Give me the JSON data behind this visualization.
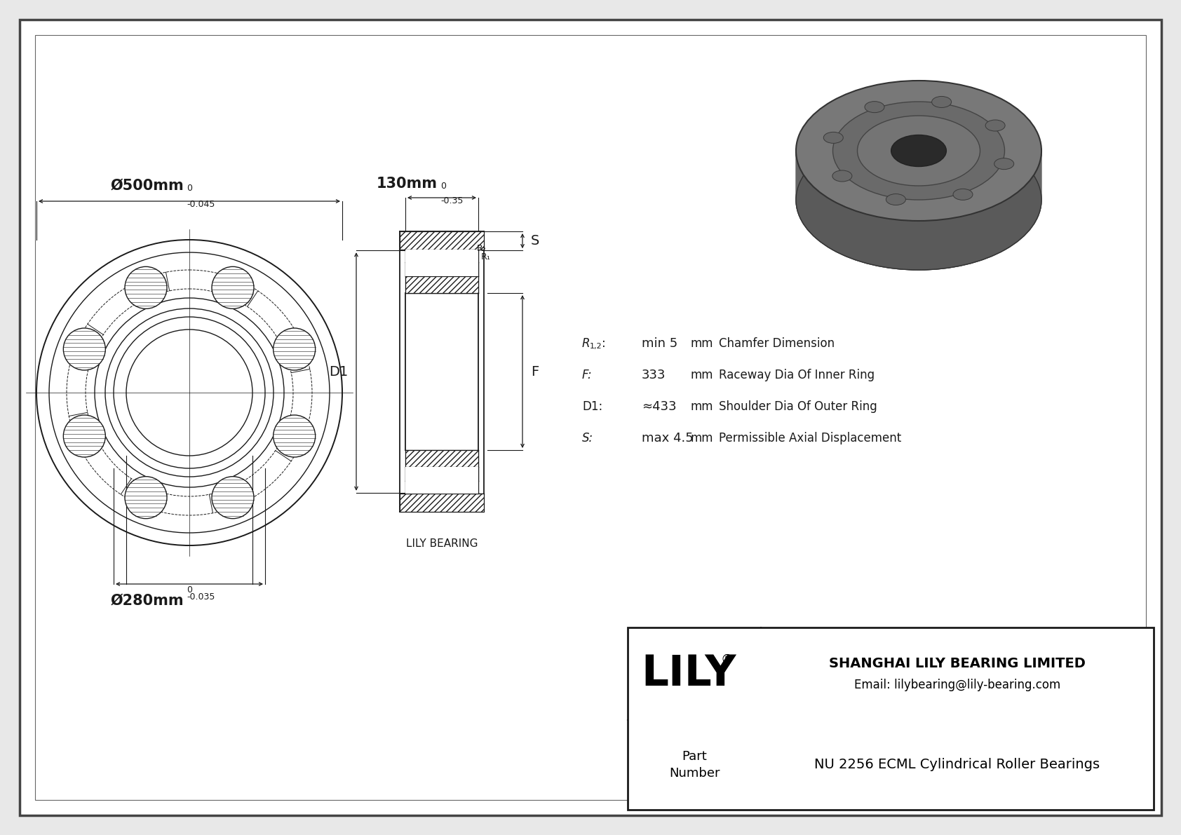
{
  "bg_color": "#f0f0f0",
  "inner_bg": "#ffffff",
  "line_color": "#1a1a1a",
  "part_number": "NU 2256 ECML Cylindrical Roller Bearings",
  "company": "SHANGHAI LILY BEARING LIMITED",
  "email": "Email: lilybearing@lily-bearing.com",
  "lily_text": "LILY",
  "params": [
    {
      "symbol": "R1,2:",
      "value": "min 5",
      "unit": "mm",
      "desc": "Chamfer Dimension"
    },
    {
      "symbol": "F:",
      "value": "333",
      "unit": "mm",
      "desc": "Raceway Dia Of Inner Ring"
    },
    {
      "symbol": "D1:",
      "value": "≈433",
      "unit": "mm",
      "desc": "Shoulder Dia Of Outer Ring"
    },
    {
      "symbol": "S:",
      "value": "max 4.5",
      "unit": "mm",
      "desc": "Permissible Axial Displacement"
    }
  ],
  "dim_od": "Ø500mm",
  "dim_od_tol": "-0.045",
  "dim_od_sup": "0",
  "dim_id": "Ø280mm",
  "dim_id_tol": "-0.035",
  "dim_id_sup": "0",
  "dim_w": "130mm",
  "dim_w_tol": "-0.35",
  "dim_w_sup": "0",
  "lily_bearing_label": "LILY BEARING"
}
